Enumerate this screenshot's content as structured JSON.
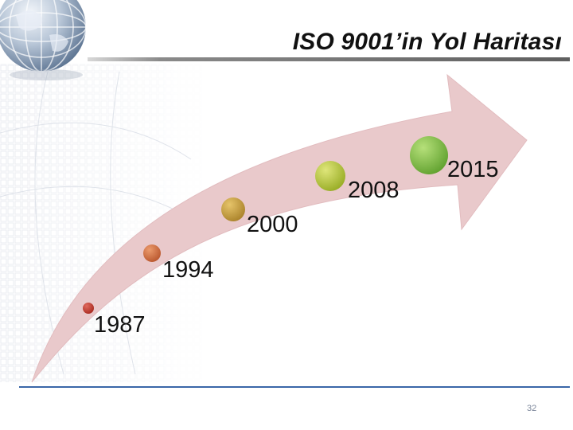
{
  "slide": {
    "title": "ISO 9001’in Yol Haritası",
    "page_number": "32"
  },
  "timeline": {
    "milestones": [
      {
        "year": "1987",
        "color": "#c0392b"
      },
      {
        "year": "1994",
        "color": "#d2693a"
      },
      {
        "year": "2000",
        "color": "#c9a13b"
      },
      {
        "year": "2008",
        "color": "#b5c93a"
      },
      {
        "year": "2015",
        "color": "#7cc142"
      }
    ],
    "arrow_color": "#e9c9cb"
  },
  "theme": {
    "rule_color": "#3a66a8",
    "title_rule_color": "#6e6e6e"
  }
}
